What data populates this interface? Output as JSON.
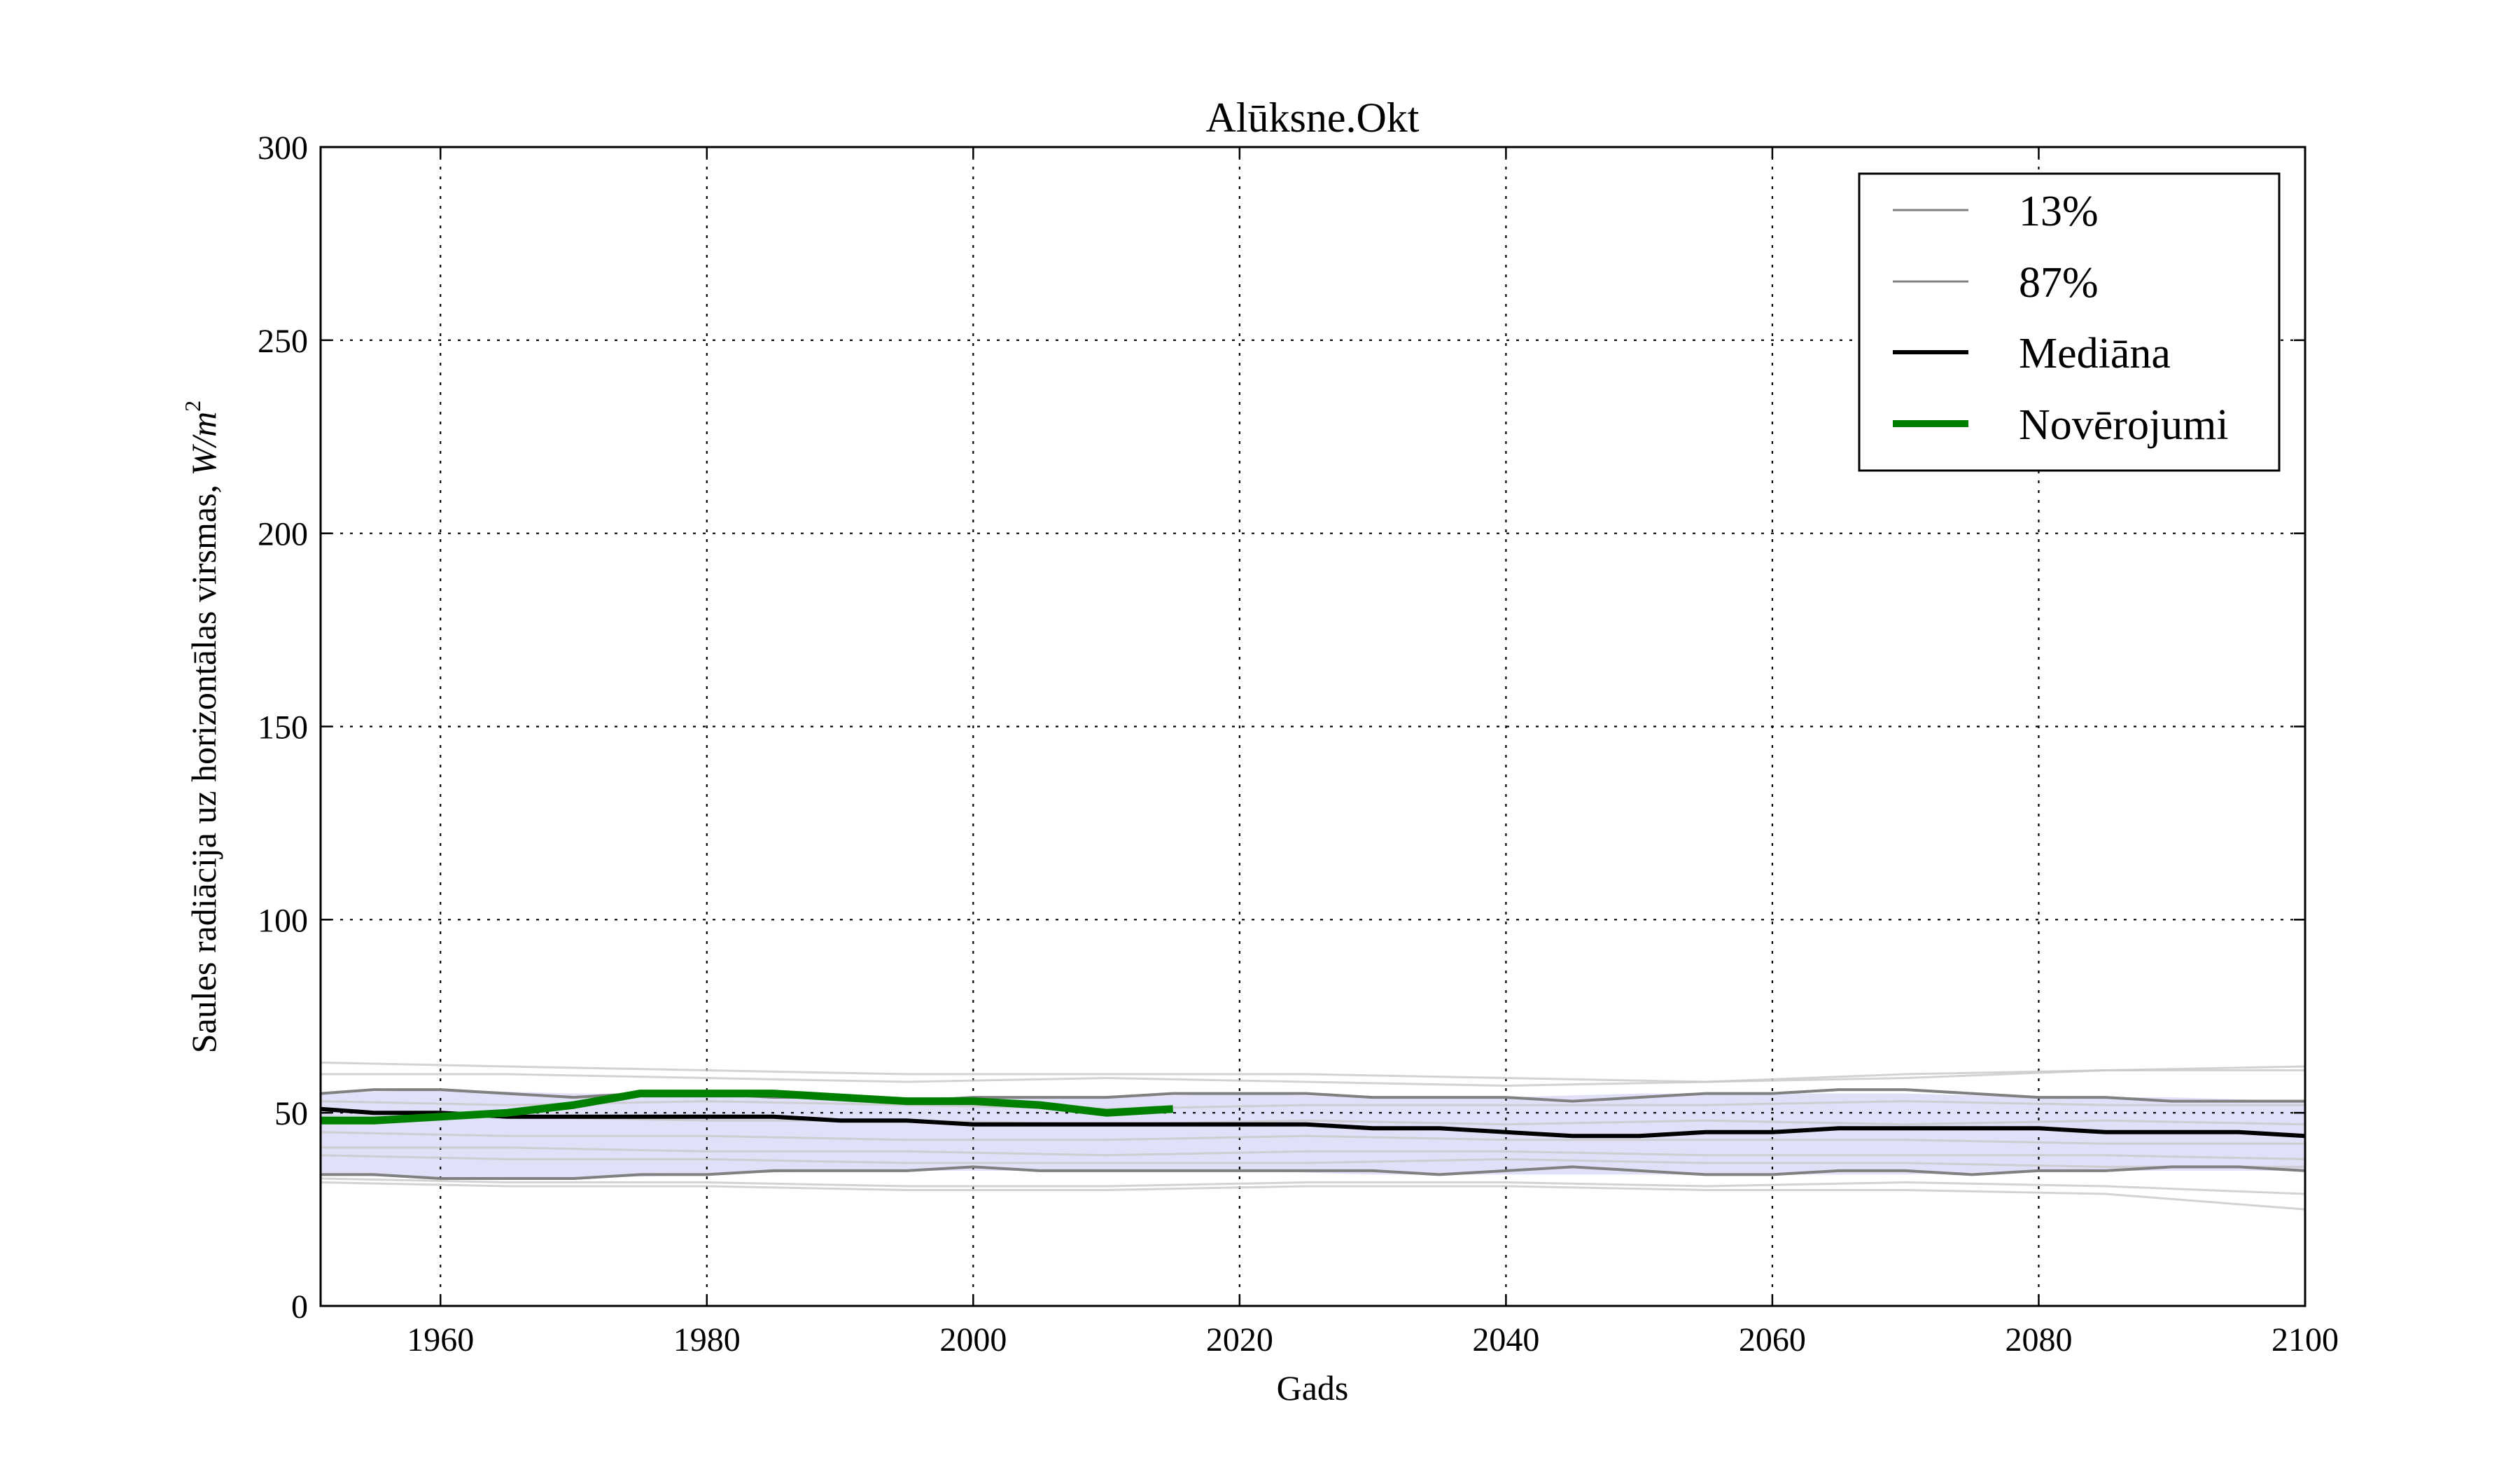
{
  "chart_data": {
    "type": "line",
    "title": "Alūksne.Okt",
    "xlabel": "Gads",
    "ylabel": "Saules radiācija uz horizontālas virsmas, ",
    "ylabel_unit": "W/m",
    "ylabel_unit_exp": "2",
    "xlim": [
      1951,
      2100
    ],
    "ylim": [
      0,
      300
    ],
    "x_ticks": [
      1960,
      1980,
      2000,
      2020,
      2040,
      2060,
      2080,
      2100
    ],
    "y_ticks": [
      0,
      50,
      100,
      150,
      200,
      250,
      300
    ],
    "grid": true,
    "legend_position": "upper right",
    "colors": {
      "band": "#d8d8f6",
      "ensemble": "#c8c8c8",
      "percentile": "#808080",
      "median": "#000000",
      "observations": "#008000"
    },
    "band": {
      "x": [
        1951,
        1960,
        1970,
        1980,
        1990,
        2000,
        2010,
        2020,
        2030,
        2040,
        2050,
        2060,
        2070,
        2080,
        2090,
        2100
      ],
      "lower": [
        34,
        33,
        33,
        34,
        35,
        35,
        35,
        35,
        34,
        34,
        34,
        34,
        34,
        35,
        35,
        35
      ],
      "upper": [
        55,
        56,
        55,
        55,
        54,
        54,
        54,
        55,
        54,
        54,
        55,
        55,
        55,
        54,
        54,
        53
      ]
    },
    "ensemble_members": [
      {
        "x": [
          1951,
          1965,
          1980,
          1995,
          2010,
          2025,
          2040,
          2055,
          2070,
          2085,
          2100
        ],
        "y": [
          63,
          62,
          61,
          60,
          60,
          60,
          59,
          58,
          60,
          61,
          61
        ]
      },
      {
        "x": [
          1951,
          1965,
          1980,
          1995,
          2010,
          2025,
          2040,
          2055,
          2070,
          2085,
          2100
        ],
        "y": [
          60,
          60,
          59,
          58,
          59,
          58,
          57,
          58,
          59,
          61,
          62
        ]
      },
      {
        "x": [
          1951,
          1965,
          1980,
          1995,
          2010,
          2025,
          2040,
          2055,
          2070,
          2085,
          2100
        ],
        "y": [
          53,
          52,
          53,
          52,
          51,
          52,
          52,
          52,
          53,
          52,
          52
        ]
      },
      {
        "x": [
          1951,
          1965,
          1980,
          1995,
          2010,
          2025,
          2040,
          2055,
          2070,
          2085,
          2100
        ],
        "y": [
          49,
          49,
          48,
          48,
          47,
          48,
          47,
          48,
          47,
          48,
          47
        ]
      },
      {
        "x": [
          1951,
          1965,
          1980,
          1995,
          2010,
          2025,
          2040,
          2055,
          2070,
          2085,
          2100
        ],
        "y": [
          45,
          44,
          44,
          43,
          43,
          44,
          43,
          43,
          43,
          42,
          42
        ]
      },
      {
        "x": [
          1951,
          1965,
          1980,
          1995,
          2010,
          2025,
          2040,
          2055,
          2070,
          2085,
          2100
        ],
        "y": [
          41,
          41,
          40,
          40,
          39,
          40,
          40,
          39,
          39,
          39,
          38
        ]
      },
      {
        "x": [
          1951,
          1965,
          1980,
          1995,
          2010,
          2025,
          2040,
          2055,
          2070,
          2085,
          2100
        ],
        "y": [
          39,
          38,
          38,
          37,
          37,
          37,
          38,
          37,
          37,
          36,
          36
        ]
      },
      {
        "x": [
          1951,
          1965,
          1980,
          1995,
          2010,
          2025,
          2040,
          2055,
          2070,
          2085,
          2100
        ],
        "y": [
          32,
          31,
          31,
          30,
          30,
          31,
          31,
          30,
          30,
          29,
          25
        ]
      },
      {
        "x": [
          1951,
          1965,
          1980,
          1995,
          2010,
          2025,
          2040,
          2055,
          2070,
          2085,
          2100
        ],
        "y": [
          33,
          32,
          32,
          31,
          31,
          32,
          32,
          31,
          32,
          31,
          29
        ]
      }
    ],
    "series": [
      {
        "name": "13%",
        "x": [
          1951,
          1955,
          1960,
          1965,
          1970,
          1975,
          1980,
          1985,
          1990,
          1995,
          2000,
          2005,
          2010,
          2015,
          2020,
          2025,
          2030,
          2035,
          2040,
          2045,
          2050,
          2055,
          2060,
          2065,
          2070,
          2075,
          2080,
          2085,
          2090,
          2095,
          2100
        ],
        "y": [
          34,
          34,
          33,
          33,
          33,
          34,
          34,
          35,
          35,
          35,
          36,
          35,
          35,
          35,
          35,
          35,
          35,
          34,
          35,
          36,
          35,
          34,
          34,
          35,
          35,
          34,
          35,
          35,
          36,
          36,
          35
        ]
      },
      {
        "name": "87%",
        "x": [
          1951,
          1955,
          1960,
          1965,
          1970,
          1975,
          1980,
          1985,
          1990,
          1995,
          2000,
          2005,
          2010,
          2015,
          2020,
          2025,
          2030,
          2035,
          2040,
          2045,
          2050,
          2055,
          2060,
          2065,
          2070,
          2075,
          2080,
          2085,
          2090,
          2095,
          2100
        ],
        "y": [
          55,
          56,
          56,
          55,
          54,
          55,
          55,
          54,
          54,
          53,
          54,
          54,
          54,
          55,
          55,
          55,
          54,
          54,
          54,
          53,
          54,
          55,
          55,
          56,
          56,
          55,
          54,
          54,
          53,
          53,
          53
        ]
      },
      {
        "name": "Mediāna",
        "x": [
          1951,
          1955,
          1960,
          1965,
          1970,
          1975,
          1980,
          1985,
          1990,
          1995,
          2000,
          2005,
          2010,
          2015,
          2020,
          2025,
          2030,
          2035,
          2040,
          2045,
          2050,
          2055,
          2060,
          2065,
          2070,
          2075,
          2080,
          2085,
          2090,
          2095,
          2100
        ],
        "y": [
          51,
          50,
          50,
          49,
          49,
          49,
          49,
          49,
          48,
          48,
          47,
          47,
          47,
          47,
          47,
          47,
          46,
          46,
          45,
          44,
          44,
          45,
          45,
          46,
          46,
          46,
          46,
          45,
          45,
          45,
          44
        ]
      },
      {
        "name": "Novērojumi",
        "x": [
          1951,
          1955,
          1960,
          1965,
          1970,
          1975,
          1980,
          1985,
          1990,
          1995,
          2000,
          2005,
          2010,
          2015
        ],
        "y": [
          48,
          48,
          49,
          50,
          52,
          55,
          55,
          55,
          54,
          53,
          53,
          52,
          50,
          51
        ]
      }
    ]
  }
}
